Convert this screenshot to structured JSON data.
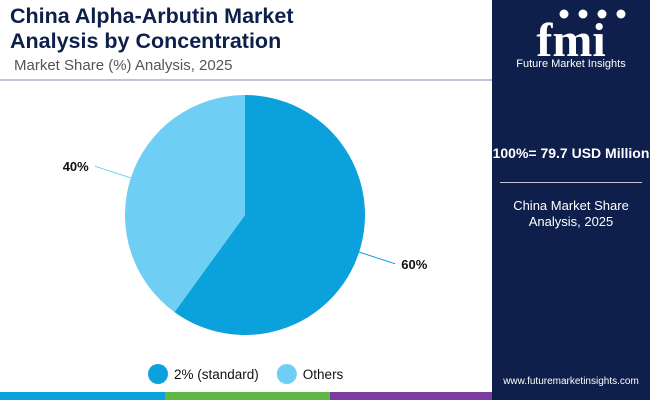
{
  "header": {
    "title_line1": "China Alpha-Arbutin Market",
    "title_line2": "Analysis by Concentration",
    "subtitle": "Market Share (%) Analysis, 2025"
  },
  "chart_data": {
    "type": "pie",
    "slices": [
      {
        "label": "2% (standard)",
        "value": 60,
        "display": "60%",
        "color": "#0aa1dc"
      },
      {
        "label": "Others",
        "value": 40,
        "display": "40%",
        "color": "#6ecef3"
      }
    ],
    "legend_position": "bottom"
  },
  "sidebar": {
    "logo_text": "fmi",
    "brand": "Future Market Insights",
    "total": "100%= 79.7 USD Million",
    "caption": "China Market Share Analysis, 2025",
    "website": "www.futuremarketinsights.com"
  },
  "colors": {
    "navy": "#0d1f4a",
    "bar": [
      "#0aa1dc",
      "#62b844",
      "#7a3ca0",
      "#0d1f4a"
    ]
  }
}
